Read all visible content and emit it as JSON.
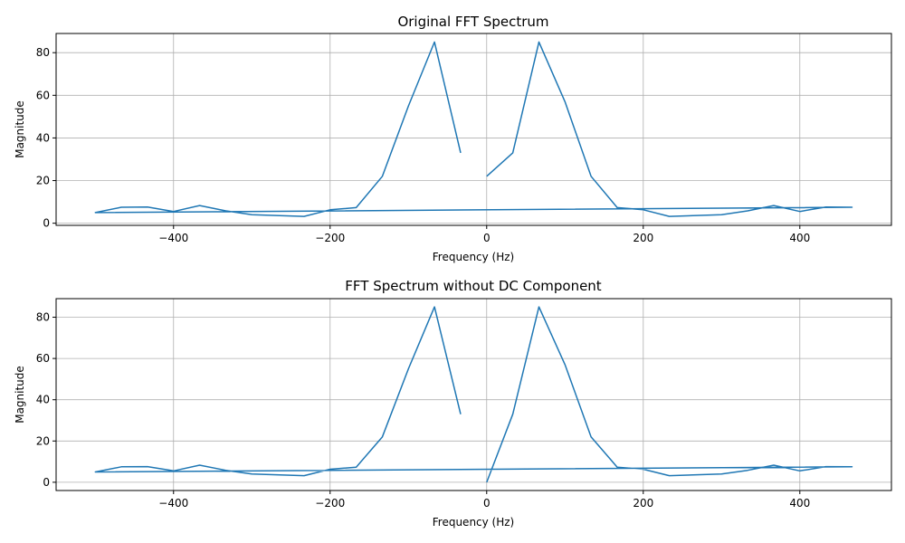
{
  "chart_data": [
    {
      "type": "line",
      "title": "Original FFT Spectrum",
      "xlabel": "Frequency (Hz)",
      "ylabel": "Magnitude",
      "xlim": [
        -550,
        517
      ],
      "ylim": [
        -1,
        89
      ],
      "xticks": [
        -400,
        -200,
        0,
        200,
        400
      ],
      "yticks": [
        0,
        20,
        40,
        60,
        80
      ],
      "grid": true,
      "series": [
        {
          "color": "#1f77b4",
          "x": [
            0,
            33.3,
            66.7,
            100,
            133.3,
            166.7,
            200,
            233.3,
            300,
            333.3,
            366.7,
            400,
            433.3,
            466.7,
            -500,
            -466.7,
            -433.3,
            -400,
            -366.7,
            -333.3,
            -300,
            -233.3,
            -200,
            -166.7,
            -133.3,
            -100,
            -66.7,
            -33.3
          ],
          "y": [
            22,
            33,
            85,
            57,
            22,
            7.3,
            6.3,
            3.2,
            4,
            5.8,
            8.3,
            5.5,
            7.6,
            7.5,
            5,
            7.5,
            7.6,
            5.5,
            8.3,
            5.8,
            4,
            3.2,
            6.3,
            7.3,
            22,
            55,
            85,
            33
          ]
        }
      ]
    },
    {
      "type": "line",
      "title": "FFT Spectrum without DC Component",
      "xlabel": "Frequency (Hz)",
      "ylabel": "Magnitude",
      "xlim": [
        -550,
        517
      ],
      "ylim": [
        -4,
        89
      ],
      "xticks": [
        -400,
        -200,
        0,
        200,
        400
      ],
      "yticks": [
        0,
        20,
        40,
        60,
        80
      ],
      "grid": true,
      "series": [
        {
          "color": "#1f77b4",
          "x": [
            0,
            33.3,
            66.7,
            100,
            133.3,
            166.7,
            200,
            233.3,
            300,
            333.3,
            366.7,
            400,
            433.3,
            466.7,
            -500,
            -466.7,
            -433.3,
            -400,
            -366.7,
            -333.3,
            -300,
            -233.3,
            -200,
            -166.7,
            -133.3,
            -100,
            -66.7,
            -33.3
          ],
          "y": [
            0,
            33,
            85,
            57,
            22,
            7.3,
            6.3,
            3.2,
            4,
            5.8,
            8.3,
            5.5,
            7.6,
            7.5,
            5,
            7.5,
            7.6,
            5.5,
            8.3,
            5.8,
            4,
            3.2,
            6.3,
            7.3,
            22,
            55,
            85,
            33
          ]
        }
      ]
    }
  ]
}
